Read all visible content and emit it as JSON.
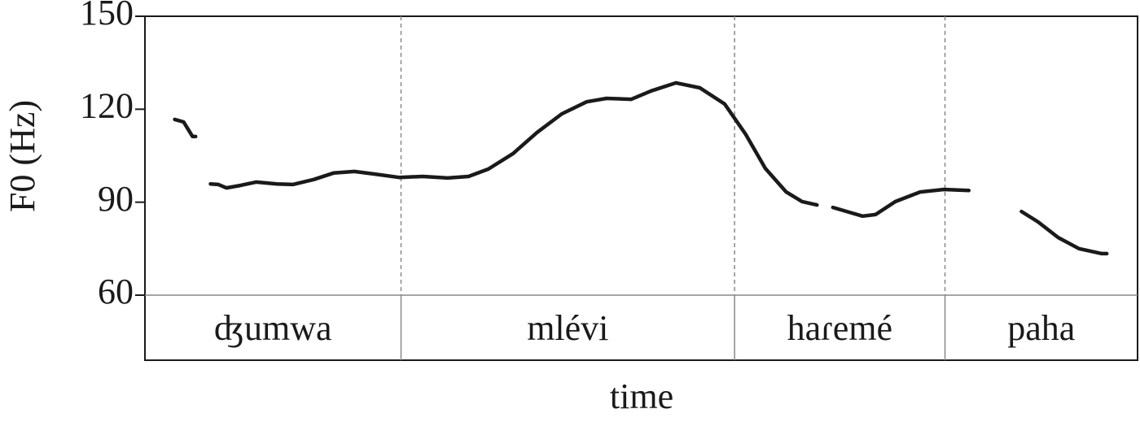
{
  "chart_data": {
    "type": "line",
    "y_label": "F0 (Hz)",
    "x_label": "time",
    "ylim": [
      60,
      150
    ],
    "yticks": [
      60,
      90,
      120,
      150
    ],
    "xlim": [
      0,
      100
    ],
    "color": "#1a1a1a",
    "x": [
      3.0,
      3.9,
      4.8,
      5.1,
      null,
      6.6,
      7.4,
      8.2,
      9.6,
      11.2,
      13.3,
      14.9,
      17.0,
      19.0,
      21.1,
      23.1,
      25.6,
      28.0,
      30.5,
      32.6,
      34.6,
      37.1,
      39.5,
      42.0,
      44.5,
      46.5,
      49.0,
      51.0,
      53.5,
      55.9,
      58.4,
      60.5,
      62.5,
      64.6,
      66.2,
      67.7,
      null,
      69.3,
      70.7,
      72.3,
      73.6,
      75.6,
      78.1,
      80.5,
      83.0,
      null,
      88.3,
      90.0,
      92.0,
      94.1,
      96.4,
      96.9
    ],
    "values": [
      116.7,
      115.9,
      111.2,
      111.2,
      null,
      95.9,
      95.7,
      94.6,
      95.4,
      96.5,
      95.9,
      95.7,
      97.3,
      99.4,
      99.9,
      99.1,
      98.0,
      98.3,
      97.8,
      98.3,
      100.7,
      105.7,
      112.5,
      118.5,
      122.4,
      123.5,
      123.2,
      125.9,
      128.5,
      126.9,
      121.7,
      112.0,
      100.9,
      93.3,
      90.2,
      89.1,
      null,
      88.3,
      87.0,
      85.5,
      86.0,
      90.2,
      93.3,
      94.1,
      93.8,
      null,
      87.0,
      83.6,
      78.6,
      75.0,
      73.4,
      73.4
    ],
    "segments": [
      {
        "label": "ʤumwa",
        "start": 0,
        "end": 25.8
      },
      {
        "label": "mlévi",
        "start": 25.8,
        "end": 59.4
      },
      {
        "label": "haɾemé",
        "start": 59.4,
        "end": 80.6
      },
      {
        "label": "paha",
        "start": 80.6,
        "end": 100
      }
    ]
  }
}
